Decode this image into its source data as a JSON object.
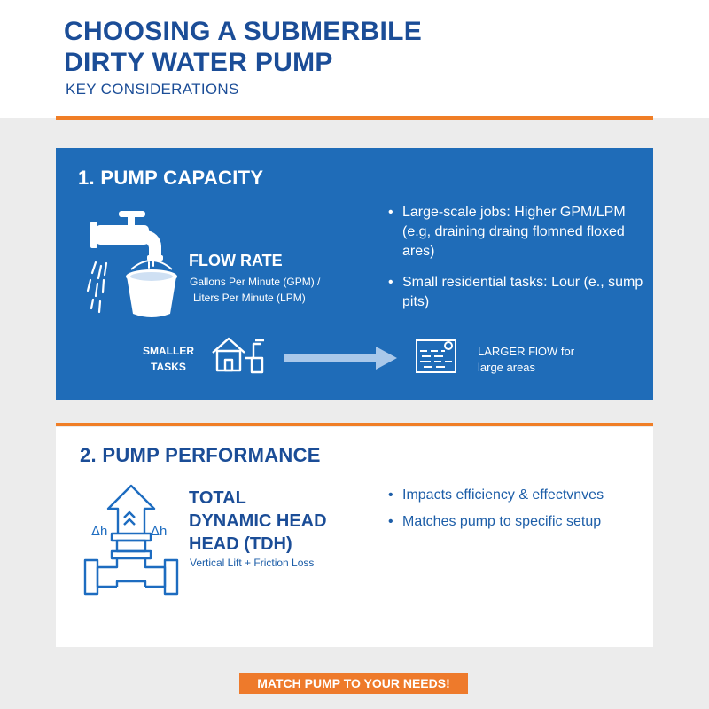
{
  "header": {
    "title_line1": "CHOOSING A SUBMERBILE",
    "title_line2": "DIRTY WATER PUMP",
    "subtitle": "KEY CONSIDERATIONS"
  },
  "section1": {
    "title": "1. PUMP CAPACITY",
    "flow_rate_title": "FLOW RATE",
    "flow_rate_line1": "Gallons Per Minute (GPM) /",
    "flow_rate_line2": "Liters Per Minute (LPM)",
    "bullets": [
      "Large-scale jobs: Higher GPM/LPM (e.g, draining draing flomned floxed ares)",
      "Small residential tasks: Lour (e., sump pits)"
    ],
    "smaller_tasks_line1": "SMALLER",
    "smaller_tasks_line2": "TASKS",
    "larger_flow_line1": "LARGER FlOW for",
    "larger_flow_line2": "large areas"
  },
  "section2": {
    "title": "2. PUMP PERFORMANCE",
    "tdh_line1": "TOTAL",
    "tdh_line2": "DYNAMIC HEAD",
    "tdh_line3": "HEAD (TDH)",
    "tdh_sub": "Vertical Lift + Friction Loss",
    "delta_label": "Δh",
    "bullets": [
      "Impacts efficiency & effectvnves",
      "Matches pump to specific setup"
    ]
  },
  "cta": {
    "label": "MATCH PUMP TO YOUR NEEDS!"
  },
  "colors": {
    "navy": "#1b4d97",
    "panel_blue": "#1f6cb8",
    "orange": "#f07e26",
    "background": "#ececec"
  },
  "icons": [
    "faucet-icon",
    "bucket-icon",
    "house-pipe-icon",
    "arrow-right-icon",
    "pool-icon",
    "pipe-lift-icon"
  ]
}
